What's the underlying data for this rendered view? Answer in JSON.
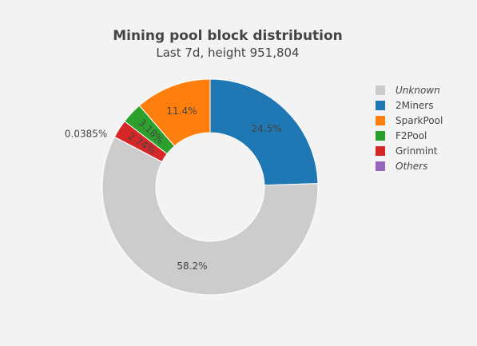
{
  "chart_data": {
    "type": "pie",
    "hole": true,
    "title": "Mining pool block distribution",
    "subtitle": "Last 7d, height 951,804",
    "slices": [
      {
        "name": "Unknown",
        "value": 58.2,
        "label": "58.2%",
        "color": "#cccccc",
        "italic": true
      },
      {
        "name": "2Miners",
        "value": 24.5,
        "label": "24.5%",
        "color": "#1f77b4",
        "italic": false
      },
      {
        "name": "SparkPool",
        "value": 11.4,
        "label": "11.4%",
        "color": "#ff7f0e",
        "italic": false
      },
      {
        "name": "F2Pool",
        "value": 3.18,
        "label": "3.18%",
        "color": "#2ca02c",
        "italic": false
      },
      {
        "name": "Grinmint",
        "value": 2.74,
        "label": "2.74%",
        "color": "#d62728",
        "italic": false
      },
      {
        "name": "Others",
        "value": 0.0385,
        "label": "0.0385%",
        "color": "#9467bd",
        "italic": true
      }
    ],
    "legend_position": "right"
  }
}
